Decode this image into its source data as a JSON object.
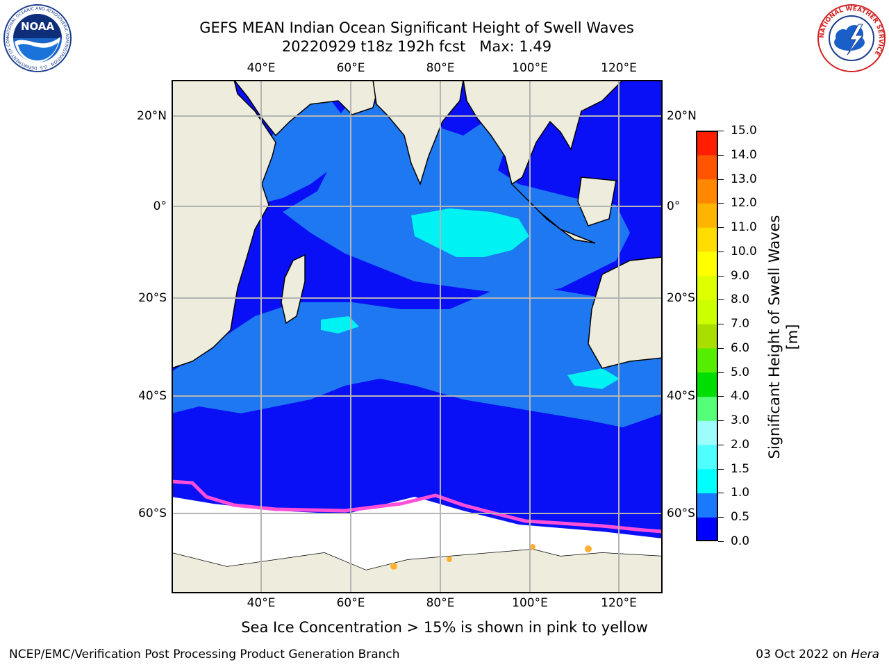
{
  "header": {
    "title_line1": "GEFS MEAN Indian Ocean Significant Height of Swell Waves",
    "title_line2": "20220929 t18z 192h fcst   Max: 1.49"
  },
  "logos": {
    "left": "NOAA",
    "left_ring": "NATIONAL OCEANIC AND ATMOSPHERIC ADMINISTRATION · U.S. DEPARTMENT OF COMMERCE",
    "right_ring": "NATIONAL WEATHER SERVICE"
  },
  "map": {
    "lon_labels": [
      "40°E",
      "60°E",
      "80°E",
      "100°E",
      "120°E"
    ],
    "lat_labels": [
      "20°N",
      "0°",
      "20°S",
      "40°S",
      "60°S"
    ],
    "colors": {
      "land": "#eeecdc",
      "ocean_low": "#0a10f5",
      "ocean_mid": "#1e78f2",
      "ocean_cyan": "#00f2f2",
      "ocean_light_cyan": "#7df5f0",
      "sea_ice": "#ffffff",
      "ice_edge": "#ff4fd8",
      "ice_edge_yellow": "#ffb030",
      "grid": "#b4b4b4"
    }
  },
  "colorbar": {
    "title": "Significant Height of Swell Waves [m]",
    "levels": [
      "0.0",
      "0.5",
      "1.0",
      "1.5",
      "2.0",
      "3.0",
      "4.0",
      "5.0",
      "6.0",
      "7.0",
      "8.0",
      "9.0",
      "10.0",
      "11.0",
      "12.0",
      "13.0",
      "14.0",
      "15.0"
    ],
    "colors": [
      "#0000ff",
      "#1a7aff",
      "#00ffff",
      "#4fffff",
      "#9dfdfd",
      "#55ff77",
      "#00dd00",
      "#55ee00",
      "#aadd00",
      "#ccff00",
      "#ddff00",
      "#ffff00",
      "#ffdd00",
      "#ffb400",
      "#ff8800",
      "#ff5500",
      "#ff1e00"
    ]
  },
  "caption": "Sea Ice Concentration > 15% is shown in pink to yellow",
  "footer": {
    "left": "NCEP/EMC/Verification Post Processing Product Generation Branch",
    "right_date": "03 Oct 2022 on ",
    "right_machine": "Hera"
  }
}
